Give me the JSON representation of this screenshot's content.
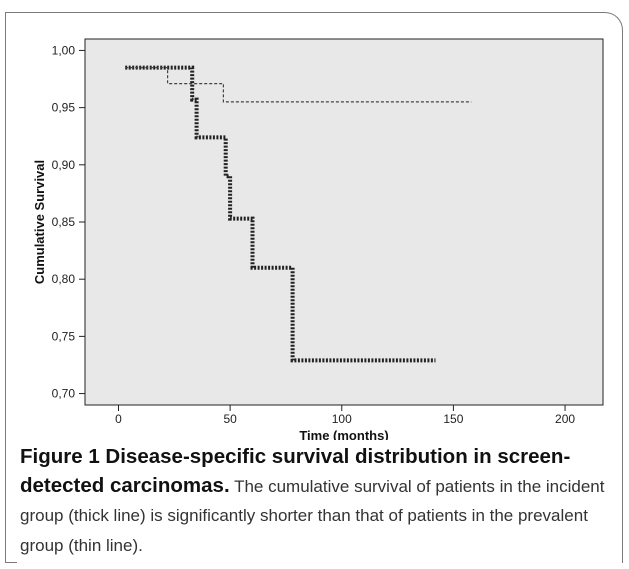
{
  "figure": {
    "caption_title": "Figure 1 Disease-specific survival distribution in screen-detected carcinomas",
    "caption_sep": ".",
    "caption_body": " The cumulative survival of patients in the incident group (thick line) is significantly shorter than that of patients in the prevalent group (thin line)."
  },
  "chart_data": {
    "type": "line",
    "xlabel": "Time (months)",
    "ylabel": "Cumulative Survival",
    "xlim": [
      -15,
      217
    ],
    "ylim": [
      0.69,
      1.01
    ],
    "xticks": [
      0,
      50,
      100,
      150,
      200
    ],
    "yticks": [
      0.7,
      0.75,
      0.8,
      0.85,
      0.9,
      0.95,
      1.0
    ],
    "xtick_labels": [
      "0",
      "50",
      "100",
      "150",
      "200"
    ],
    "ytick_labels": [
      "0,70",
      "0,75",
      "0,80",
      "0,85",
      "0,90",
      "0,95",
      "1,00"
    ],
    "grid": false,
    "plot_background": "#e8e8e8",
    "series": [
      {
        "style": "thick",
        "color": "#222222",
        "x": [
          3,
          33,
          33,
          35,
          35,
          48,
          48,
          50,
          50,
          60,
          60,
          78,
          78,
          142
        ],
        "y": [
          0.985,
          0.985,
          0.957,
          0.957,
          0.924,
          0.924,
          0.89,
          0.89,
          0.853,
          0.853,
          0.81,
          0.81,
          0.729,
          0.729
        ]
      },
      {
        "style": "thin",
        "color": "#444444",
        "x": [
          3,
          22,
          22,
          47,
          47,
          158
        ],
        "y": [
          0.985,
          0.985,
          0.971,
          0.971,
          0.955,
          0.955
        ]
      }
    ]
  }
}
